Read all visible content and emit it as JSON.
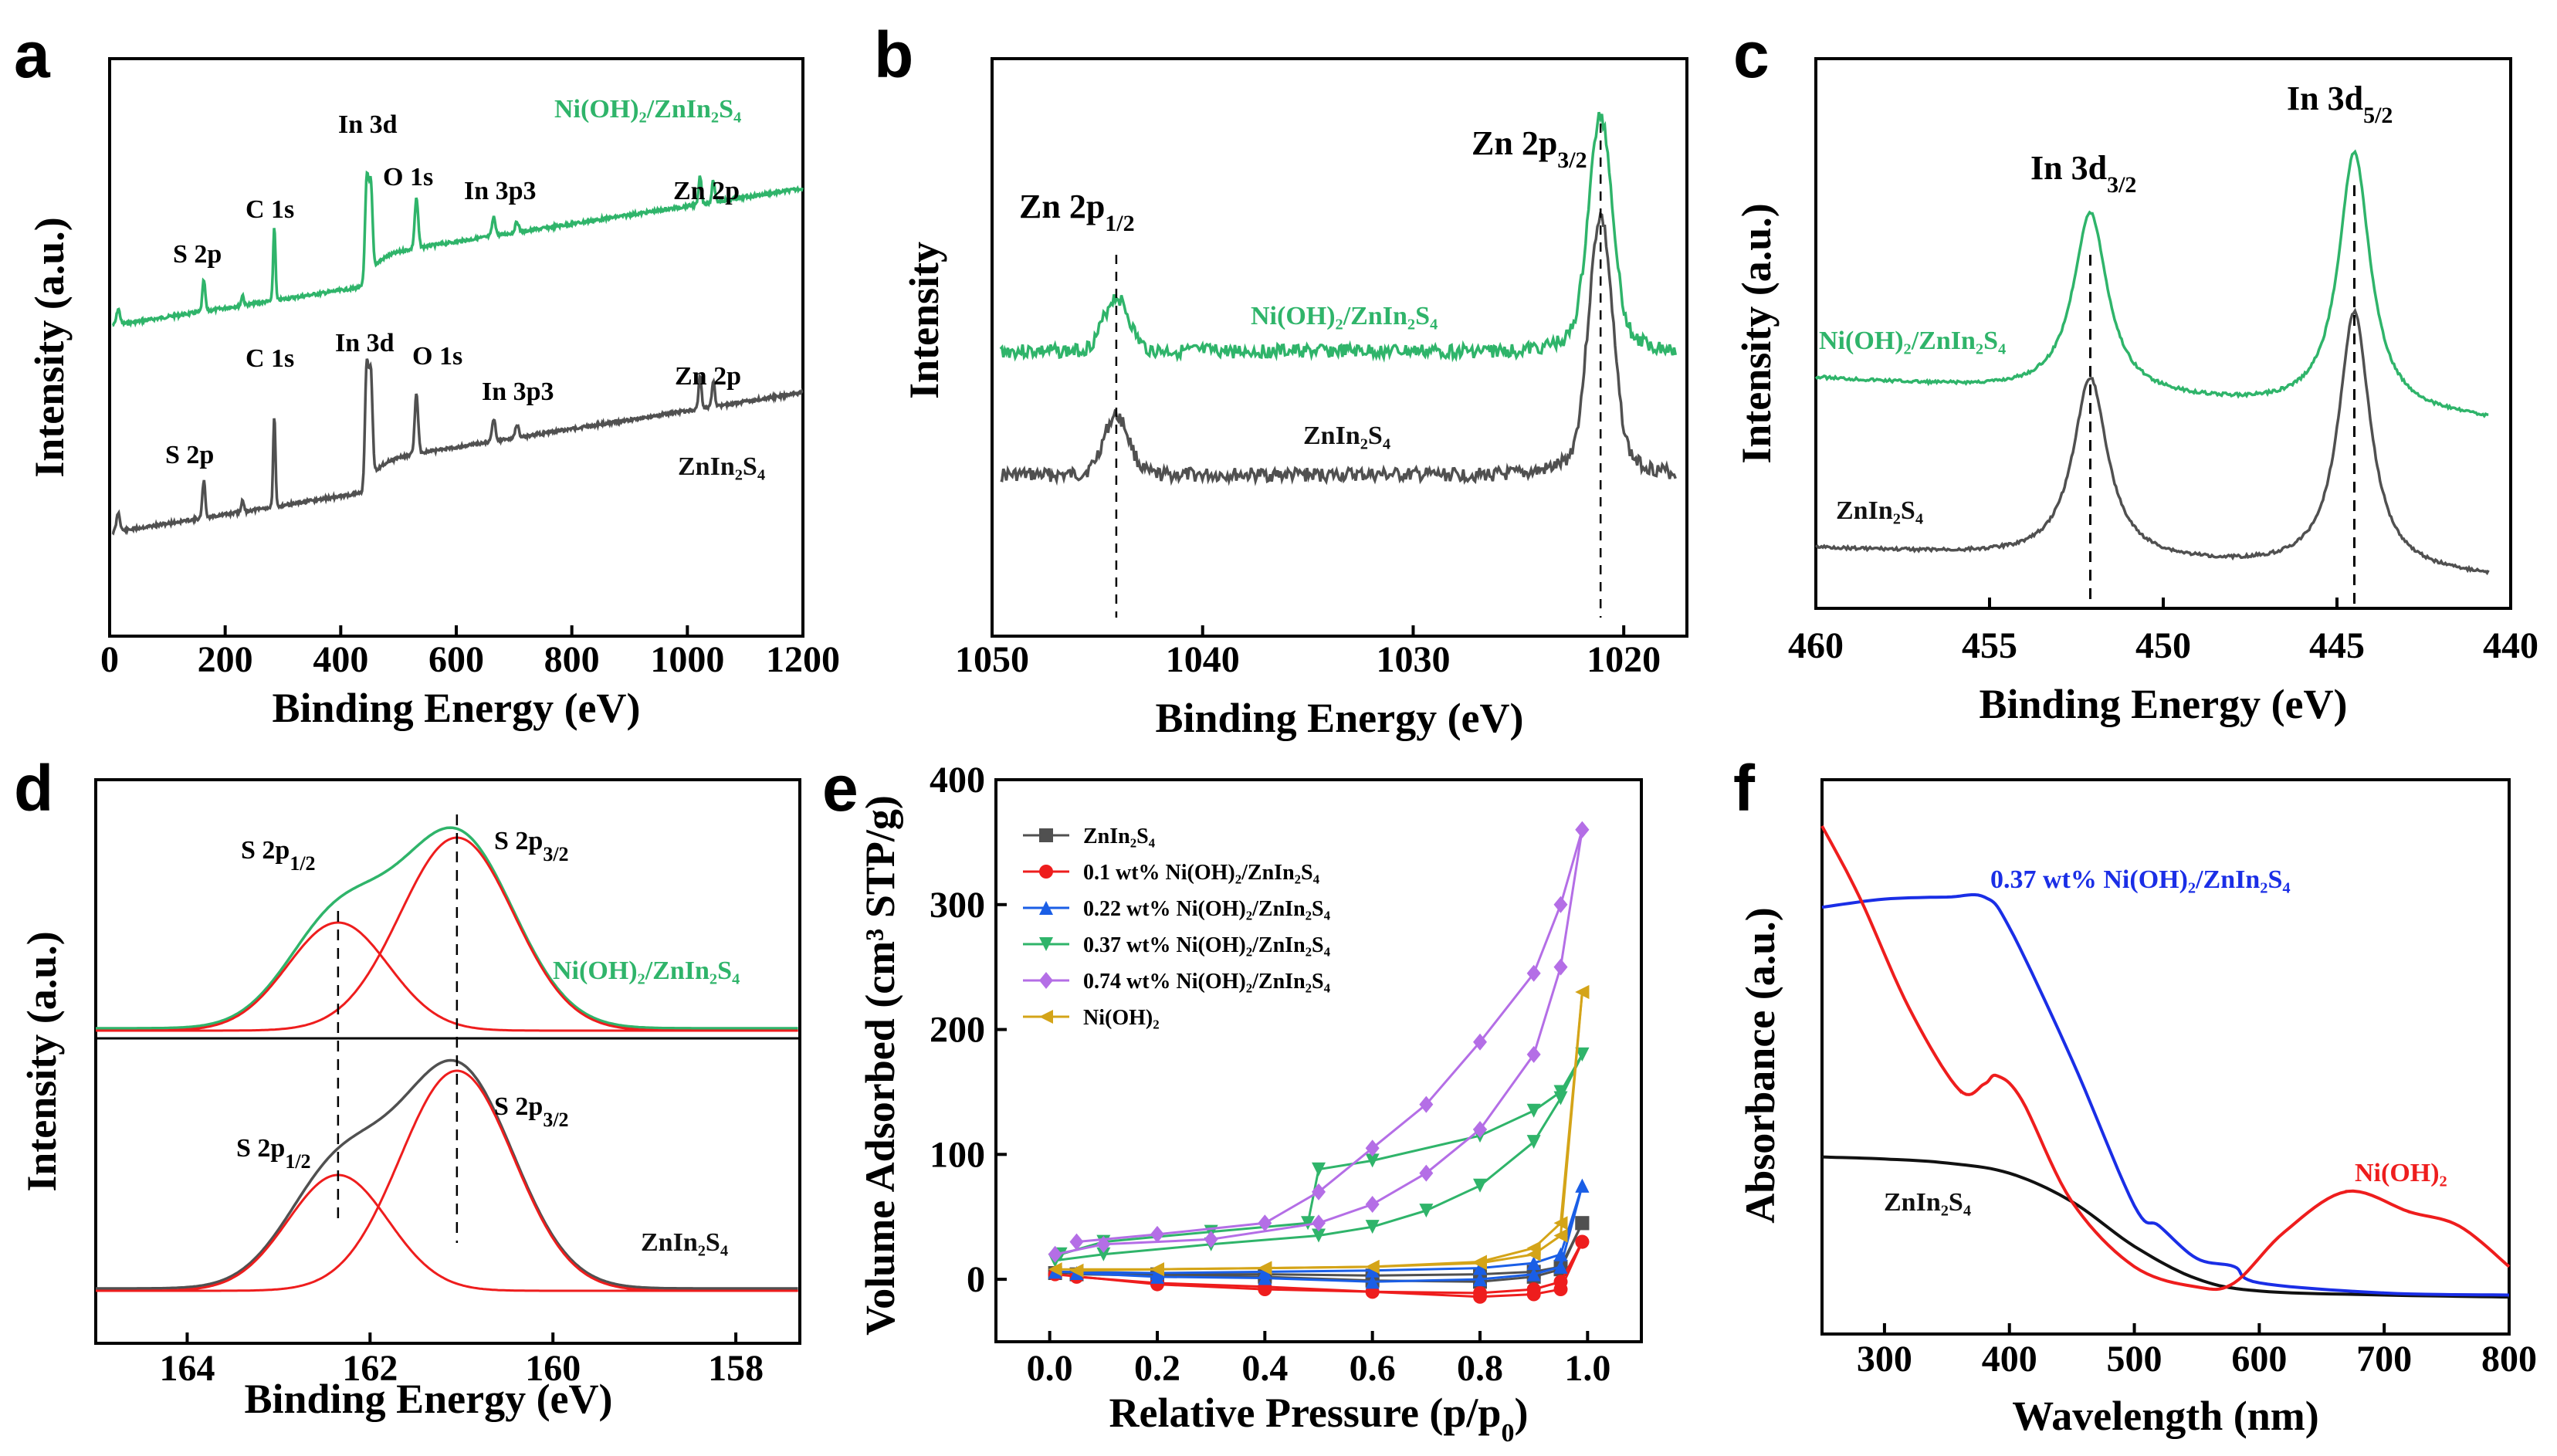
{
  "colors": {
    "green": "#2fb46a",
    "gray": "#505050",
    "red": "#ee1d1d",
    "blue": "#1a2ee6",
    "purple": "#b46ee6",
    "gold": "#d4a418",
    "black": "#111111"
  },
  "chart_data": [
    {
      "panel": "a",
      "type": "line",
      "xlabel": "Binding Energy (eV)",
      "ylabel": "Intensity (a.u.)",
      "xlim": [
        0,
        1200
      ],
      "xticks": [
        "0",
        "200",
        "400",
        "600",
        "800",
        "1000",
        "1200"
      ],
      "series": [
        {
          "name": "Ni(OH)2/ZnIn2S4",
          "label_text": "Ni(OH)₂/ZnIn₂S₄"
        },
        {
          "name": "ZnIn2S4",
          "label_text": "ZnIn₂S₄"
        }
      ],
      "peaks": [
        {
          "label": "S 2p",
          "x": 163
        },
        {
          "label": "C 1s",
          "x": 285
        },
        {
          "label": "In 3d",
          "x": 445
        },
        {
          "label": "O 1s",
          "x": 531
        },
        {
          "label": "In 3p3",
          "x": 665
        },
        {
          "label": "Zn 2p",
          "x": 1022
        }
      ]
    },
    {
      "panel": "b",
      "type": "line",
      "xlabel": "Binding Energy (eV)",
      "ylabel": "Intensity",
      "xlim": [
        1050,
        1017
      ],
      "xticks": [
        "1050",
        "1040",
        "1030",
        "1020"
      ],
      "peaks": [
        {
          "label": "Zn 2p1/2",
          "x": 1044.1
        },
        {
          "label": "Zn 2p3/2",
          "x": 1021.1
        }
      ],
      "series": [
        {
          "name": "Ni(OH)2/ZnIn2S4",
          "label_text": "Ni(OH)₂/ZnIn₂S₄"
        },
        {
          "name": "ZnIn2S4",
          "label_text": "ZnIn₂S₄"
        }
      ]
    },
    {
      "panel": "c",
      "type": "line",
      "xlabel": "Binding Energy (eV)",
      "ylabel": "Intensity (a.u.)",
      "xlim": [
        460,
        440
      ],
      "xticks": [
        "460",
        "455",
        "450",
        "445",
        "440"
      ],
      "peaks": [
        {
          "label": "In 3d3/2",
          "x": 452.1
        },
        {
          "label": "In 3d5/2",
          "x": 444.5
        }
      ],
      "series": [
        {
          "name": "Ni(OH)2/ZnIn2S4",
          "label_text": "Ni(OH)₂/ZnIn₂S₄"
        },
        {
          "name": "ZnIn2S4",
          "label_text": "ZnIn₂S₄"
        }
      ]
    },
    {
      "panel": "d",
      "type": "line",
      "xlabel": "Binding Energy (eV)",
      "ylabel": "Intensity (a.u.)",
      "xlim": [
        165,
        157.3
      ],
      "xticks": [
        "164",
        "162",
        "160",
        "158"
      ],
      "peaks": [
        {
          "label": "S 2p1/2",
          "x": 162.4
        },
        {
          "label": "S 2p3/2",
          "x": 161.1
        }
      ],
      "series": [
        {
          "name": "Ni(OH)2/ZnIn2S4",
          "label_text": "Ni(OH)₂/ZnIn₂S₄"
        },
        {
          "name": "ZnIn2S4",
          "label_text": "ZnIn₂S₄"
        }
      ]
    },
    {
      "panel": "e",
      "type": "line",
      "xlabel": "Relative Pressure (p/p₀)",
      "ylabel": "Volume Adsorbed (cm³ STP/g)",
      "xlim": [
        -0.1,
        1.1
      ],
      "ylim": [
        -50,
        400
      ],
      "xticks": [
        "0.0",
        "0.2",
        "0.4",
        "0.6",
        "0.8",
        "1.0"
      ],
      "yticks": [
        "0",
        "100",
        "200",
        "300",
        "400"
      ],
      "series": [
        {
          "name": "ZnIn2S4",
          "label_text": "ZnIn₂S₄",
          "color": "#505050",
          "marker": "square",
          "adsorption": [
            [
              0.01,
              5
            ],
            [
              0.2,
              4
            ],
            [
              0.4,
              4
            ],
            [
              0.6,
              3
            ],
            [
              0.8,
              4
            ],
            [
              0.9,
              6
            ],
            [
              0.95,
              10
            ],
            [
              0.99,
              45
            ]
          ],
          "desorption": [
            [
              0.99,
              45
            ],
            [
              0.95,
              8
            ],
            [
              0.9,
              2
            ],
            [
              0.8,
              -2
            ],
            [
              0.6,
              -1
            ],
            [
              0.4,
              2
            ],
            [
              0.2,
              3
            ],
            [
              0.05,
              4
            ]
          ]
        },
        {
          "name": "0.1 wt% Ni(OH)2/ZnIn2S4",
          "label_text": "0.1 wt%  Ni(OH)₂/ZnIn₂S₄",
          "color": "#ee1d1d",
          "marker": "circle",
          "adsorption": [
            [
              0.01,
              4
            ],
            [
              0.2,
              -4
            ],
            [
              0.4,
              -8
            ],
            [
              0.6,
              -10
            ],
            [
              0.8,
              -11
            ],
            [
              0.9,
              -8
            ],
            [
              0.95,
              -2
            ],
            [
              0.99,
              30
            ]
          ],
          "desorption": [
            [
              0.99,
              30
            ],
            [
              0.95,
              -8
            ],
            [
              0.9,
              -12
            ],
            [
              0.8,
              -14
            ],
            [
              0.6,
              -10
            ],
            [
              0.4,
              -6
            ],
            [
              0.2,
              -3
            ],
            [
              0.05,
              2
            ]
          ]
        },
        {
          "name": "0.22 wt% Ni(OH)2/ZnIn2S4",
          "label_text": "0.22 wt%  Ni(OH)₂/ZnIn₂S₄",
          "color": "#1a5ee6",
          "marker": "triangle-up",
          "adsorption": [
            [
              0.01,
              6
            ],
            [
              0.2,
              5
            ],
            [
              0.4,
              6
            ],
            [
              0.6,
              7
            ],
            [
              0.8,
              9
            ],
            [
              0.9,
              13
            ],
            [
              0.95,
              20
            ],
            [
              0.99,
              75
            ]
          ],
          "desorption": [
            [
              0.99,
              75
            ],
            [
              0.95,
              10
            ],
            [
              0.9,
              4
            ],
            [
              0.8,
              0
            ],
            [
              0.6,
              -2
            ],
            [
              0.4,
              1
            ],
            [
              0.2,
              2
            ],
            [
              0.05,
              5
            ]
          ]
        },
        {
          "name": "0.37 wt% Ni(OH)2/ZnIn2S4",
          "label_text": "0.37 wt%  Ni(OH)₂/ZnIn₂S₄",
          "color": "#2fb46a",
          "marker": "triangle-down",
          "adsorption": [
            [
              0.01,
              15
            ],
            [
              0.1,
              20
            ],
            [
              0.3,
              28
            ],
            [
              0.5,
              35
            ],
            [
              0.6,
              42
            ],
            [
              0.7,
              55
            ],
            [
              0.8,
              75
            ],
            [
              0.9,
              110
            ],
            [
              0.95,
              145
            ],
            [
              0.99,
              180
            ]
          ],
          "desorption": [
            [
              0.99,
              180
            ],
            [
              0.95,
              150
            ],
            [
              0.9,
              135
            ],
            [
              0.8,
              115
            ],
            [
              0.6,
              95
            ],
            [
              0.5,
              88
            ],
            [
              0.48,
              45
            ],
            [
              0.3,
              38
            ],
            [
              0.1,
              30
            ],
            [
              0.02,
              20
            ]
          ]
        },
        {
          "name": "0.74 wt% Ni(OH)2/ZnIn2S4",
          "label_text": "0.74 wt%  Ni(OH)₂/ZnIn₂S₄",
          "color": "#b46ee6",
          "marker": "diamond",
          "adsorption": [
            [
              0.01,
              20
            ],
            [
              0.1,
              28
            ],
            [
              0.3,
              32
            ],
            [
              0.5,
              45
            ],
            [
              0.6,
              60
            ],
            [
              0.7,
              85
            ],
            [
              0.8,
              120
            ],
            [
              0.9,
              180
            ],
            [
              0.95,
              250
            ],
            [
              0.99,
              360
            ]
          ],
          "desorption": [
            [
              0.99,
              360
            ],
            [
              0.95,
              300
            ],
            [
              0.9,
              245
            ],
            [
              0.8,
              190
            ],
            [
              0.7,
              140
            ],
            [
              0.6,
              105
            ],
            [
              0.5,
              70
            ],
            [
              0.4,
              45
            ],
            [
              0.2,
              36
            ],
            [
              0.05,
              30
            ]
          ]
        },
        {
          "name": "Ni(OH)2",
          "label_text": "Ni(OH)₂",
          "color": "#d4a418",
          "marker": "triangle-left",
          "adsorption": [
            [
              0.01,
              8
            ],
            [
              0.2,
              8
            ],
            [
              0.4,
              9
            ],
            [
              0.6,
              10
            ],
            [
              0.8,
              13
            ],
            [
              0.9,
              20
            ],
            [
              0.95,
              35
            ],
            [
              0.99,
              230
            ]
          ],
          "desorption": [
            [
              0.99,
              230
            ],
            [
              0.95,
              45
            ],
            [
              0.9,
              25
            ],
            [
              0.8,
              14
            ],
            [
              0.6,
              10
            ],
            [
              0.4,
              9
            ],
            [
              0.2,
              8
            ],
            [
              0.05,
              7
            ]
          ]
        }
      ]
    },
    {
      "panel": "f",
      "type": "line",
      "xlabel": "Wavelength (nm)",
      "ylabel": "Absorbance (a.u.)",
      "xlim": [
        250,
        800
      ],
      "xticks": [
        "300",
        "400",
        "500",
        "600",
        "700",
        "800"
      ],
      "series": [
        {
          "name": "ZnIn2S4",
          "label_text": "ZnIn₂S₄",
          "color": "#111111",
          "points": [
            [
              250,
              0.72
            ],
            [
              300,
              0.71
            ],
            [
              350,
              0.69
            ],
            [
              400,
              0.64
            ],
            [
              450,
              0.5
            ],
            [
              500,
              0.28
            ],
            [
              550,
              0.12
            ],
            [
              600,
              0.06
            ],
            [
              700,
              0.04
            ],
            [
              800,
              0.03
            ]
          ]
        },
        {
          "name": "0.37 wt% Ni(OH)2/ZnIn2S4",
          "label_text": "0.37 wt% Ni(OH)₂/ZnIn₂S₄",
          "color": "#1a2ee6",
          "points": [
            [
              250,
              1.95
            ],
            [
              300,
              1.99
            ],
            [
              350,
              2.0
            ],
            [
              380,
              2.0
            ],
            [
              400,
              1.85
            ],
            [
              450,
              1.2
            ],
            [
              500,
              0.48
            ],
            [
              520,
              0.38
            ],
            [
              550,
              0.22
            ],
            [
              580,
              0.18
            ],
            [
              600,
              0.1
            ],
            [
              700,
              0.05
            ],
            [
              800,
              0.04
            ]
          ]
        },
        {
          "name": "Ni(OH)2",
          "label_text": "Ni(OH)₂",
          "color": "#ee1d1d",
          "points": [
            [
              250,
              2.35
            ],
            [
              280,
              2.0
            ],
            [
              320,
              1.45
            ],
            [
              360,
              1.05
            ],
            [
              380,
              1.08
            ],
            [
              390,
              1.12
            ],
            [
              410,
              1.0
            ],
            [
              450,
              0.5
            ],
            [
              500,
              0.18
            ],
            [
              550,
              0.08
            ],
            [
              580,
              0.1
            ],
            [
              620,
              0.35
            ],
            [
              670,
              0.55
            ],
            [
              720,
              0.45
            ],
            [
              760,
              0.38
            ],
            [
              800,
              0.18
            ]
          ]
        }
      ]
    }
  ],
  "panels": {
    "a": {
      "letter": "a",
      "xlabel": "Binding Energy (eV)",
      "ylabel": "Intensity (a.u.)",
      "top_labels": [
        "S 2p",
        "C 1s",
        "In 3d",
        "O 1s",
        "In 3p3",
        "Zn 2p"
      ],
      "bottom_labels": [
        "S 2p",
        "C 1s",
        "In 3d",
        "O 1s",
        "In 3p3",
        "Zn 2p"
      ],
      "top_name": "Ni(OH)₂/ZnIn₂S₄",
      "bottom_name": "ZnIn₂S₄",
      "xticks": [
        "0",
        "200",
        "400",
        "600",
        "800",
        "1000",
        "1200"
      ]
    },
    "b": {
      "letter": "b",
      "xlabel": "Binding Energy (eV)",
      "ylabel": "Intensity",
      "peak1": "Zn 2p",
      "peak1_sub": "1/2",
      "peak2": "Zn 2p",
      "peak2_sub": "3/2",
      "top_name": "Ni(OH)₂/ZnIn₂S₄",
      "bottom_name": "ZnIn₂S₄",
      "xticks": [
        "1050",
        "1040",
        "1030",
        "1020"
      ]
    },
    "c": {
      "letter": "c",
      "xlabel": "Binding Energy (eV)",
      "ylabel": "Intensity (a.u.)",
      "peak1": "In 3d",
      "peak1_sub": "3/2",
      "peak2": "In 3d",
      "peak2_sub": "5/2",
      "top_name": "Ni(OH)₂/ZnIn₂S₄",
      "bottom_name": "ZnIn₂S₄",
      "xticks": [
        "460",
        "455",
        "450",
        "445",
        "440"
      ]
    },
    "d": {
      "letter": "d",
      "xlabel": "Binding Energy (eV)",
      "ylabel": "Intensity (a.u.)",
      "peak1": "S 2p",
      "peak1_sub": "1/2",
      "peak2": "S 2p",
      "peak2_sub": "3/2",
      "top_name": "Ni(OH)₂/ZnIn₂S₄",
      "bottom_name": "ZnIn₂S₄",
      "xticks": [
        "164",
        "162",
        "160",
        "158"
      ]
    },
    "e": {
      "letter": "e",
      "xlabel": "Relative Pressure (p/p",
      "xlabel_sub": "0",
      "xlabel_end": ")",
      "ylabel": "Volume Adsorbed (cm³ STP/g)",
      "xticks": [
        "0.0",
        "0.2",
        "0.4",
        "0.6",
        "0.8",
        "1.0"
      ],
      "yticks": [
        "0",
        "100",
        "200",
        "300",
        "400"
      ]
    },
    "f": {
      "letter": "f",
      "xlabel": "Wavelength (nm)",
      "ylabel": "Absorbance (a.u.)",
      "xticks": [
        "300",
        "400",
        "500",
        "600",
        "700",
        "800"
      ],
      "label_blue": "0.37 wt% Ni(OH)₂/ZnIn₂S₄",
      "label_red": "Ni(OH)₂",
      "label_black": "ZnIn₂S₄"
    }
  }
}
